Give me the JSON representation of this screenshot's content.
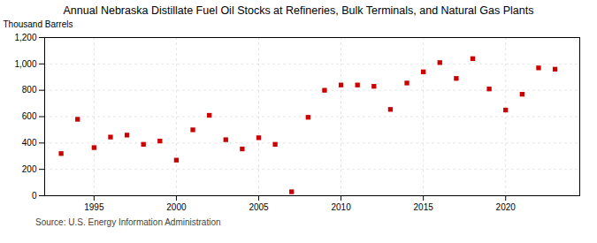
{
  "chart_data": {
    "type": "scatter",
    "title": "Annual Nebraska Distillate Fuel Oil Stocks at Refineries, Bulk Terminals, and Natural Gas Plants",
    "ylabel": "Thousand Barrels",
    "source": "Source: U.S. Energy Information Administration",
    "x": [
      1993,
      1994,
      1995,
      1996,
      1997,
      1998,
      1999,
      2000,
      2001,
      2002,
      2003,
      2004,
      2005,
      2006,
      2007,
      2008,
      2009,
      2010,
      2011,
      2012,
      2013,
      2014,
      2015,
      2016,
      2017,
      2018,
      2019,
      2020,
      2021,
      2022,
      2023
    ],
    "values": [
      320,
      580,
      365,
      445,
      460,
      390,
      415,
      270,
      500,
      610,
      425,
      355,
      440,
      390,
      30,
      595,
      800,
      840,
      840,
      830,
      655,
      855,
      940,
      1010,
      890,
      1040,
      810,
      650,
      770,
      970,
      960
    ],
    "color": "#cc0000",
    "marker": "square",
    "xlim": [
      1992.0,
      2024.5
    ],
    "xticks": [
      1995,
      2000,
      2005,
      2010,
      2015,
      2020
    ],
    "ylim": [
      0,
      1200
    ],
    "yticks": [
      0,
      200,
      400,
      600,
      800,
      {
        "value": 1000,
        "label": "1,000"
      },
      {
        "value": 1200,
        "label": "1,200"
      }
    ],
    "grid": true
  }
}
